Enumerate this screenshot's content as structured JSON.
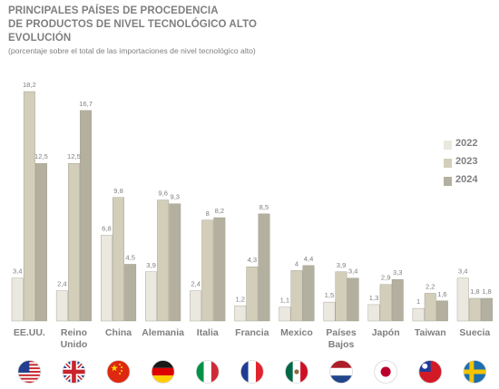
{
  "title_lines": [
    "PRINCIPALES PAÍSES DE PROCEDENCIA",
    "DE PRODUCTOS DE NIVEL TECNOLÓGICO ALTO",
    "EVOLUCIÓN"
  ],
  "subtitle": "(porcentaje sobre el total de las importaciones de nivel tecnológico alto)",
  "colors": {
    "2022": "#ebe8e0",
    "2023": "#d2ceb9",
    "2024": "#b4b09f",
    "bar_stroke": "#9a9686",
    "text": "#7f7f7f"
  },
  "flags": [
    "usa-flag-icon",
    "uk-flag-icon",
    "china-flag-icon",
    "germany-flag-icon",
    "italy-flag-icon",
    "france-flag-icon",
    "mexico-flag-icon",
    "netherlands-flag-icon",
    "japan-flag-icon",
    "taiwan-flag-icon",
    "sweden-flag-icon"
  ],
  "chart_data": {
    "type": "bar",
    "title": "PRINCIPALES PAÍSES DE PROCEDENCIA DE PRODUCTOS DE NIVEL TECNOLÓGICO ALTO EVOLUCIÓN",
    "subtitle": "(porcentaje sobre el total de las importaciones de nivel tecnológico alto)",
    "categories": [
      "EE.UU.",
      "Reino\nUnido",
      "China",
      "Alemania",
      "Italia",
      "Francia",
      "Mexico",
      "Países\nBajos",
      "Japón",
      "Taiwan",
      "Suecia"
    ],
    "series": [
      {
        "name": "2022",
        "values": [
          3.4,
          2.4,
          6.8,
          3.9,
          2.4,
          1.2,
          1.1,
          1.5,
          1.3,
          1.0,
          3.4
        ],
        "labels": [
          "3,4",
          "2,4",
          "6,8",
          "3,9",
          "2,4",
          "1,2",
          "1,1",
          "1,5",
          "1,3",
          "1",
          "3,4"
        ]
      },
      {
        "name": "2023",
        "values": [
          18.2,
          12.5,
          9.8,
          9.6,
          8.0,
          4.3,
          4.0,
          3.9,
          2.9,
          2.2,
          1.8
        ],
        "labels": [
          "18,2",
          "12,5",
          "9,8",
          "9,6",
          "8",
          "4,3",
          "4",
          "3,9",
          "2,9",
          "2,2",
          "1,8"
        ]
      },
      {
        "name": "2024",
        "values": [
          12.5,
          16.7,
          4.5,
          9.3,
          8.2,
          8.5,
          4.4,
          3.4,
          3.3,
          1.6,
          1.8
        ],
        "labels": [
          "12,5",
          "16,7",
          "4,5",
          "9,3",
          "8,2",
          "8,5",
          "4,4",
          "3,4",
          "3,3",
          "1,6",
          "1,8"
        ]
      }
    ],
    "ylim": [
      0,
      19.5
    ],
    "legend": "right",
    "grid": false,
    "xlabel": "",
    "ylabel": ""
  }
}
